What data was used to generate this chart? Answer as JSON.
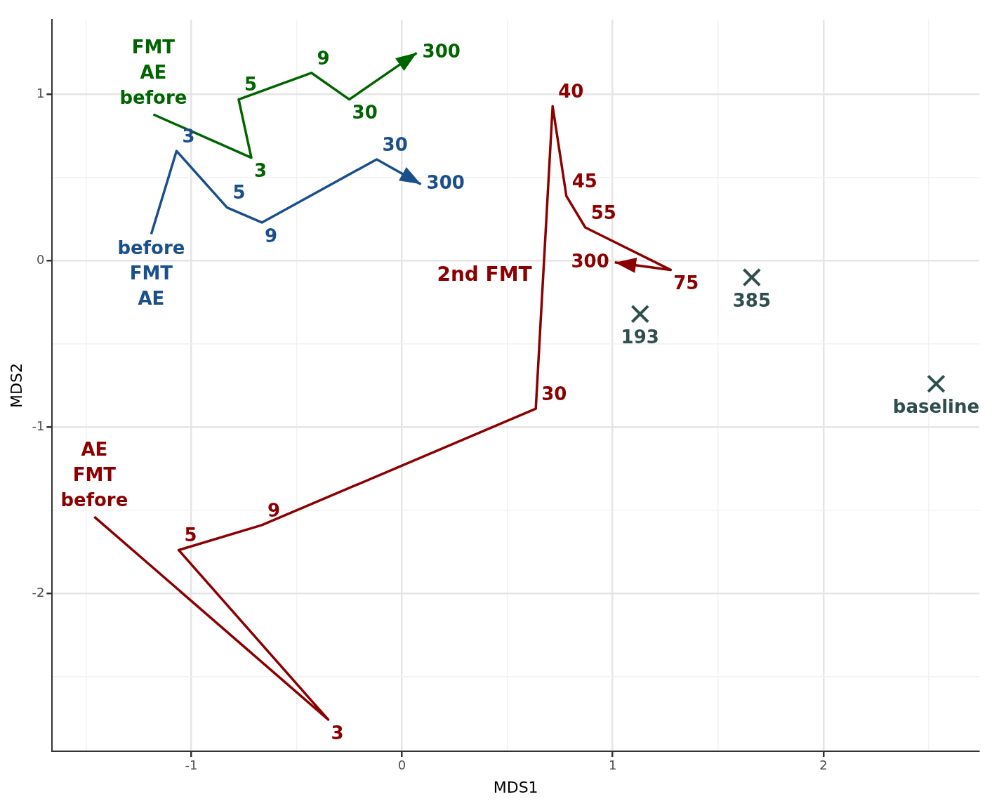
{
  "chart_data": {
    "type": "line",
    "xlabel": "MDS1",
    "ylabel": "MDS2",
    "xlim": [
      -1.66,
      2.74
    ],
    "ylim": [
      -2.95,
      1.45
    ],
    "xticks": [
      {
        "value": -1.5,
        "label": null
      },
      -1,
      {
        "value": -0.5,
        "label": null
      },
      0,
      {
        "value": 0.5,
        "label": null
      },
      1,
      {
        "value": 1.5,
        "label": null
      },
      2,
      {
        "value": 2.5,
        "label": null
      }
    ],
    "yticks": [
      {
        "value": -2.5,
        "label": null
      },
      -2,
      {
        "value": -1.5,
        "label": null
      },
      -1,
      {
        "value": -0.5,
        "label": null
      },
      0,
      {
        "value": 0.5,
        "label": null
      },
      1
    ],
    "grid": true,
    "legend": false,
    "marker": "none",
    "line_style": "solid",
    "series": [
      {
        "color": "#006400",
        "x": [
          -1.18,
          -0.715,
          -0.775,
          -0.43,
          -0.25,
          0.07
        ],
        "values": [
          0.88,
          0.62,
          0.97,
          1.13,
          0.97,
          1.25
        ]
      },
      {
        "color": "#1a4f8b",
        "x": [
          -1.19,
          -1.07,
          -0.83,
          -0.665,
          -0.12,
          0.09
        ],
        "values": [
          0.16,
          0.66,
          0.32,
          0.23,
          0.61,
          0.46
        ]
      },
      {
        "color": "#8b0000",
        "x": [
          -1.46,
          -0.35,
          -1.06,
          -0.665,
          0.635,
          0.715,
          0.78,
          0.87,
          1.275,
          1.01
        ],
        "values": [
          -1.54,
          -2.76,
          -1.74,
          -1.59,
          -0.89,
          0.93,
          0.39,
          0.2,
          -0.055,
          -0.01
        ]
      },
      {
        "type": "scatter",
        "marker": "cross",
        "color": "#2f4f4f",
        "x": [
          1.13,
          1.66,
          2.535
        ],
        "values": [
          -0.32,
          -0.1,
          -0.74
        ]
      }
    ],
    "annotations": [
      {
        "text": "before",
        "x": -1.18,
        "y": 0.88
      },
      "AE",
      "FMT",
      {
        "text": "3",
        "x": -0.715,
        "y": 0.62
      },
      {
        "text": "5",
        "x": -0.775,
        "y": 0.97
      },
      {
        "text": "9",
        "x": -0.43,
        "y": 1.13
      },
      {
        "text": "30",
        "x": -0.25,
        "y": 0.97
      },
      {
        "text": "300",
        "x": 0.07,
        "y": 1.25
      },
      {
        "text": "before",
        "x": -1.19,
        "y": 0.16
      },
      "FMT",
      "AE",
      {
        "text": "3",
        "x": -1.07,
        "y": 0.66
      },
      {
        "text": "5",
        "x": -0.83,
        "y": 0.32
      },
      {
        "text": "9",
        "x": -0.665,
        "y": 0.23
      },
      {
        "text": "30",
        "x": -0.12,
        "y": 0.61
      },
      {
        "text": "300",
        "x": 0.09,
        "y": 0.46
      },
      {
        "text": "before",
        "x": -1.46,
        "y": -1.54
      },
      "FMT",
      "AE",
      {
        "text": "3",
        "x": -0.35,
        "y": -2.76
      },
      {
        "text": "5",
        "x": -1.06,
        "y": -1.74
      },
      {
        "text": "9",
        "x": -0.665,
        "y": -1.59
      },
      {
        "text": "30",
        "x": 0.635,
        "y": -0.89
      },
      {
        "text": "40",
        "x": 0.715,
        "y": 0.93
      },
      {
        "text": "45",
        "x": 0.78,
        "y": 0.39
      },
      {
        "text": "55",
        "x": 0.87,
        "y": 0.2
      },
      {
        "text": "75",
        "x": 1.275,
        "y": -0.055
      },
      {
        "text": "300",
        "x": 1.01,
        "y": -0.01
      },
      {
        "text": "2nd FMT",
        "x": 0.67,
        "y": -0.09
      },
      {
        "text": "193",
        "x": 1.13,
        "y": -0.32
      },
      {
        "text": "385",
        "x": 1.66,
        "y": -0.1
      },
      {
        "text": "baseline",
        "x": 2.535,
        "y": -0.74
      }
    ]
  }
}
